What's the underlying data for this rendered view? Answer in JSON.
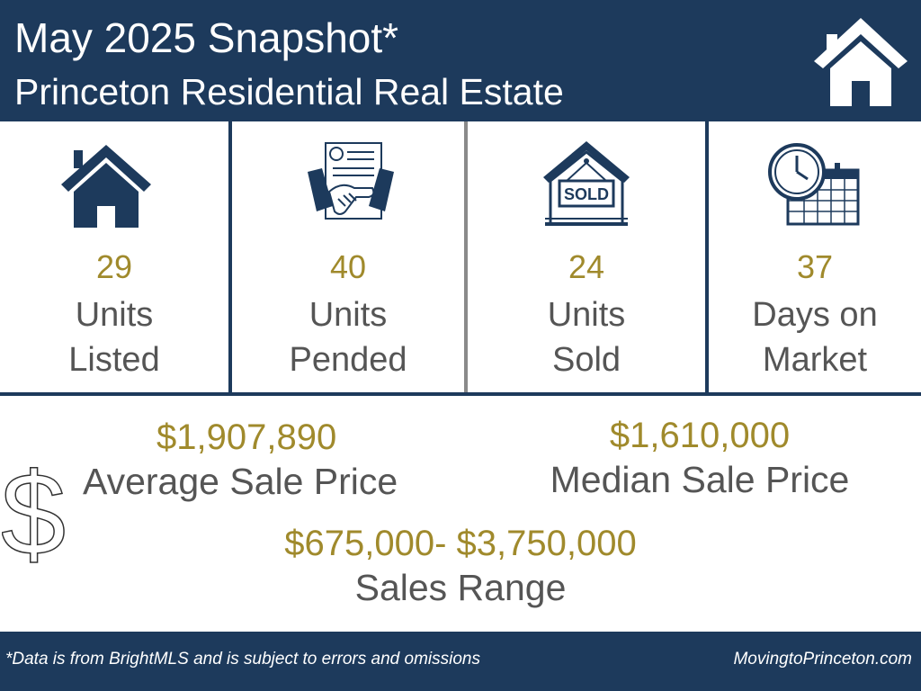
{
  "header": {
    "title": "May 2025 Snapshot*",
    "subtitle": "Princeton Residential Real Estate",
    "icon": "home-icon"
  },
  "stats": [
    {
      "value": "29",
      "label_line1": "Units",
      "label_line2": "Listed",
      "icon": "house-icon"
    },
    {
      "value": "40",
      "label_line1": "Units",
      "label_line2": "Pended",
      "icon": "handshake-contract-icon"
    },
    {
      "value": "24",
      "label_line1": "Units",
      "label_line2": "Sold",
      "icon": "sold-sign-icon",
      "icon_text": "SOLD"
    },
    {
      "value": "37",
      "label_line1": "Days on",
      "label_line2": "Market",
      "icon": "clock-calendar-icon"
    }
  ],
  "prices": {
    "average": {
      "value": "$1,907,890",
      "label": "Average Sale Price"
    },
    "median": {
      "value": "$1,610,000",
      "label": "Median Sale Price"
    },
    "range": {
      "value": "$675,000- $3,750,000",
      "label": "Sales Range"
    },
    "icon": "dollar-icon"
  },
  "footer": {
    "note": "*Data is from BrightMLS and is subject to errors and omissions",
    "site": "MovingtoPrinceton.com"
  },
  "colors": {
    "navy": "#1d3a5c",
    "gold": "#a08a2c",
    "gray_text": "#555555"
  }
}
